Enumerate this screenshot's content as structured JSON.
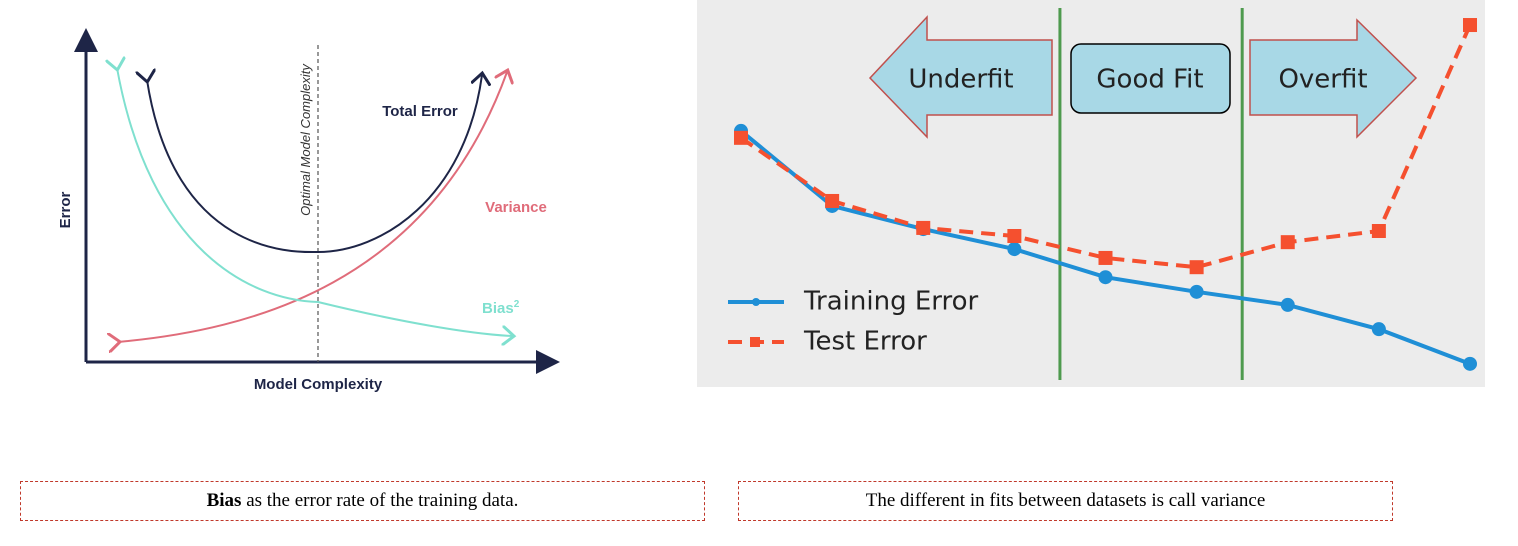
{
  "diagram": {
    "y_label": "Error",
    "x_label": "Model Complexity",
    "optimal_label": "Optimal Model Complexity",
    "total_error": "Total Error",
    "variance": "Variance",
    "bias": "Bias",
    "bias_sup": "2"
  },
  "chart_data": {
    "type": "line",
    "x": [
      1,
      2,
      3,
      4,
      5,
      6,
      7,
      8,
      9
    ],
    "xlim": [
      1,
      9
    ],
    "ylim": [
      0,
      100
    ],
    "zones": [
      "Underfit",
      "Good Fit",
      "Overfit"
    ],
    "zone_lines": [
      4.5,
      6.5
    ],
    "zone_line_color": "#4e9a4e",
    "series": [
      {
        "name": "Training Error",
        "color": "#1f8fd6",
        "marker": "circle",
        "values": [
          66,
          46.5,
          40.5,
          35.3,
          28,
          24.2,
          20.8,
          14.5,
          5.5
        ]
      },
      {
        "name": "Test Error",
        "color": "#f5502f",
        "marker": "square",
        "dashed": true,
        "values": [
          64.2,
          47.8,
          40.8,
          38.7,
          33,
          30.6,
          37.1,
          40,
          93.5
        ]
      }
    ]
  },
  "captions": [
    {
      "bold": "Bias",
      "text": " as the error rate of the training data."
    },
    {
      "text": "The different in fits between datasets is call variance"
    }
  ]
}
